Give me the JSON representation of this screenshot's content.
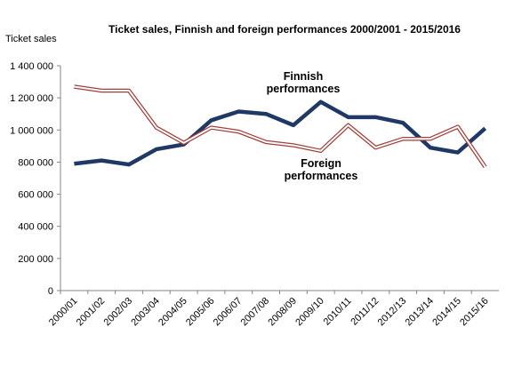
{
  "chart_data": {
    "type": "line",
    "title": "Ticket sales, Finnish and foreign performances 2000/2001  - 2015/2016",
    "y_label": "Ticket sales",
    "categories": [
      "2000/01",
      "2001/02",
      "2002/03",
      "2003/04",
      "2004/05",
      "2005/06",
      "2006/07",
      "2007/08",
      "2008/09",
      "2009/10",
      "2010/11",
      "2011/12",
      "2012/13",
      "2013/14",
      "2014/15",
      "2015/16"
    ],
    "series": [
      {
        "label_lines": [
          "Finnish",
          "performances"
        ],
        "color": "#1f3864",
        "style": "solid",
        "values": [
          790000,
          810000,
          785000,
          880000,
          910000,
          1060000,
          1115000,
          1100000,
          1030000,
          1175000,
          1080000,
          1080000,
          1045000,
          890000,
          860000,
          1010000
        ]
      },
      {
        "label_lines": [
          "Foreign",
          "performances"
        ],
        "color": "#a0403c",
        "style": "double",
        "values": [
          1270000,
          1245000,
          1245000,
          1015000,
          920000,
          1015000,
          990000,
          925000,
          905000,
          870000,
          1030000,
          890000,
          945000,
          945000,
          1020000,
          770000
        ]
      }
    ],
    "ylim": [
      0,
      1400000
    ],
    "yticks": [
      0,
      {
        "value": 200000,
        "label": "200 000"
      },
      {
        "value": 400000,
        "label": "400 000"
      },
      {
        "value": 600000,
        "label": "600 000"
      },
      {
        "value": 800000,
        "label": "800 000"
      },
      {
        "value": 1000000,
        "label": "1 000 000"
      },
      {
        "value": 1200000,
        "label": "1 200 000"
      },
      {
        "value": 1400000,
        "label": "1 400 000"
      }
    ]
  }
}
